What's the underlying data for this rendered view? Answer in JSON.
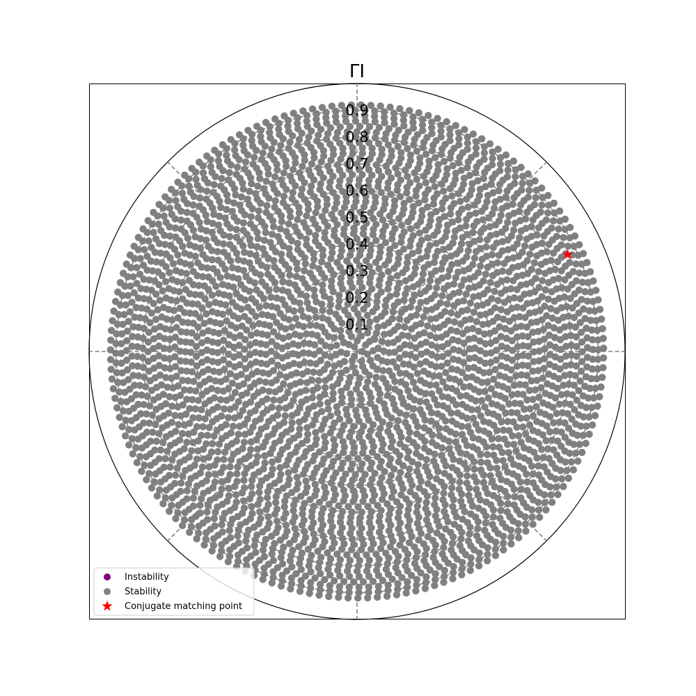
{
  "chart_data": {
    "type": "scatter",
    "coordinate_system": "polar (Smith-chart style reflection coefficient plane)",
    "title": "ΓI",
    "radial_ticks": [
      "0.1",
      "0.2",
      "0.3",
      "0.4",
      "0.5",
      "0.6",
      "0.7",
      "0.8",
      "0.9"
    ],
    "rlim": [
      0,
      1
    ],
    "grid": true,
    "grid_style": "dashed gray circles at r = 0.1 ... 0.9 and spokes every 45°",
    "legend_position": "lower-left",
    "series": [
      {
        "name": "Instability",
        "color": "#800080",
        "marker": "circle",
        "points": []
      },
      {
        "name": "Stability",
        "color": "#808080",
        "marker": "circle",
        "sampling": "concentric rings of sample points filling the disc from r ≈ 0 to r ≈ 0.92",
        "ring_radii": [
          0.02,
          0.04,
          0.06,
          0.08,
          0.1,
          0.12,
          0.14,
          0.16,
          0.18,
          0.2,
          0.22,
          0.24,
          0.26,
          0.28,
          0.3,
          0.32,
          0.34,
          0.36,
          0.38,
          0.4,
          0.42,
          0.44,
          0.46,
          0.48,
          0.5,
          0.52,
          0.54,
          0.56,
          0.58,
          0.6,
          0.62,
          0.64,
          0.66,
          0.68,
          0.7,
          0.72,
          0.74,
          0.76,
          0.78,
          0.8,
          0.82,
          0.84,
          0.86,
          0.88,
          0.9,
          0.92
        ]
      },
      {
        "name": "Conjugate matching point",
        "color": "#ff0000",
        "marker": "star",
        "points": [
          {
            "r": 0.865,
            "angle_deg": 24.7
          }
        ]
      }
    ]
  }
}
